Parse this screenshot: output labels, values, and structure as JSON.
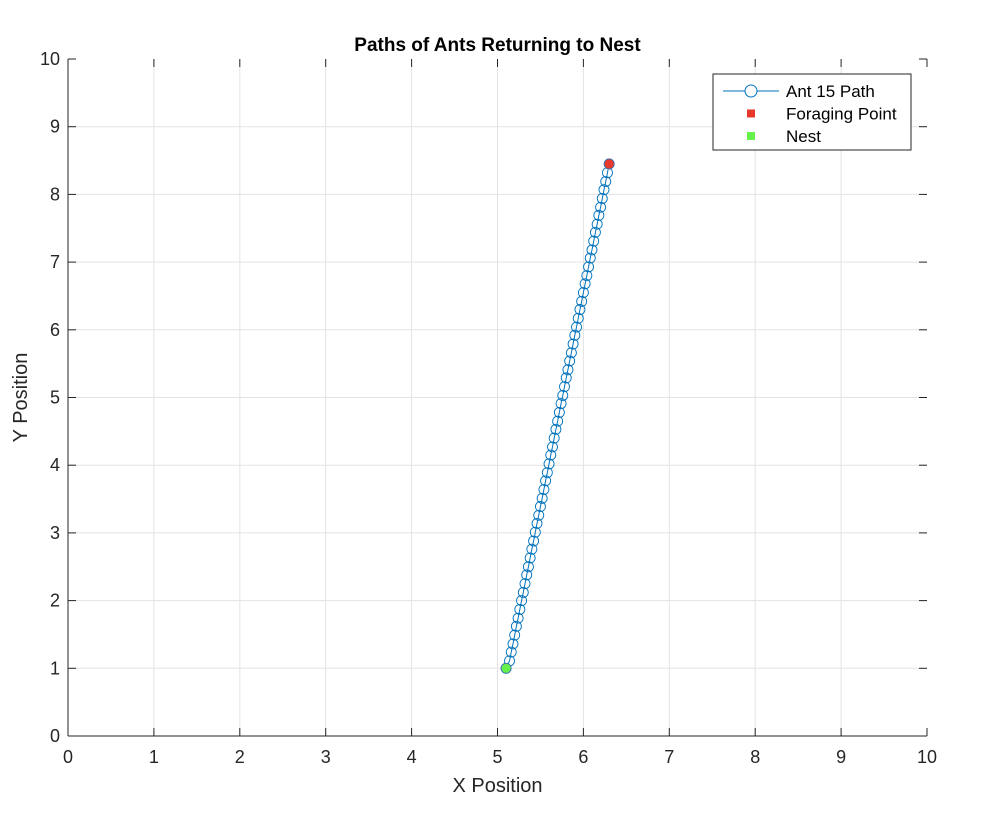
{
  "chart_data": {
    "type": "line",
    "title": "Paths of Ants Returning to Nest",
    "xlabel": "X Position",
    "ylabel": "Y Position",
    "xlim": [
      0,
      10
    ],
    "ylim": [
      0,
      10
    ],
    "xticks": [
      "0",
      "1",
      "2",
      "3",
      "4",
      "5",
      "6",
      "7",
      "8",
      "9",
      "10"
    ],
    "yticks": [
      "0",
      "1",
      "2",
      "3",
      "4",
      "5",
      "6",
      "7",
      "8",
      "9",
      "10"
    ],
    "grid": true,
    "legend_position": "top-right",
    "series": [
      {
        "name": "Ant 15 Path",
        "color": "#0072BD",
        "marker": "circle",
        "start": [
          6.3,
          8.45
        ],
        "end": [
          5.1,
          1.0
        ],
        "points": [
          [
            6.3,
            8.45
          ],
          [
            6.28,
            8.32
          ],
          [
            6.26,
            8.19
          ],
          [
            6.24,
            8.07
          ],
          [
            6.22,
            7.94
          ],
          [
            6.2,
            7.81
          ],
          [
            6.18,
            7.69
          ],
          [
            6.16,
            7.56
          ],
          [
            6.14,
            7.44
          ],
          [
            6.12,
            7.31
          ],
          [
            6.1,
            7.18
          ],
          [
            6.08,
            7.06
          ],
          [
            6.06,
            6.93
          ],
          [
            6.04,
            6.8
          ],
          [
            6.02,
            6.68
          ],
          [
            6.0,
            6.55
          ],
          [
            5.98,
            6.42
          ],
          [
            5.96,
            6.3
          ],
          [
            5.94,
            6.17
          ],
          [
            5.92,
            6.04
          ],
          [
            5.9,
            5.92
          ],
          [
            5.88,
            5.79
          ],
          [
            5.86,
            5.66
          ],
          [
            5.84,
            5.54
          ],
          [
            5.82,
            5.41
          ],
          [
            5.8,
            5.29
          ],
          [
            5.78,
            5.16
          ],
          [
            5.76,
            5.03
          ],
          [
            5.74,
            4.91
          ],
          [
            5.72,
            4.78
          ],
          [
            5.7,
            4.65
          ],
          [
            5.68,
            4.53
          ],
          [
            5.66,
            4.4
          ],
          [
            5.64,
            4.27
          ],
          [
            5.62,
            4.15
          ],
          [
            5.6,
            4.02
          ],
          [
            5.58,
            3.89
          ],
          [
            5.56,
            3.77
          ],
          [
            5.54,
            3.64
          ],
          [
            5.52,
            3.51
          ],
          [
            5.5,
            3.39
          ],
          [
            5.48,
            3.26
          ],
          [
            5.46,
            3.14
          ],
          [
            5.44,
            3.01
          ],
          [
            5.42,
            2.88
          ],
          [
            5.4,
            2.76
          ],
          [
            5.38,
            2.63
          ],
          [
            5.36,
            2.5
          ],
          [
            5.34,
            2.38
          ],
          [
            5.32,
            2.25
          ],
          [
            5.3,
            2.12
          ],
          [
            5.28,
            2.0
          ],
          [
            5.26,
            1.87
          ],
          [
            5.24,
            1.74
          ],
          [
            5.22,
            1.62
          ],
          [
            5.2,
            1.49
          ],
          [
            5.18,
            1.36
          ],
          [
            5.16,
            1.24
          ],
          [
            5.14,
            1.11
          ],
          [
            5.1,
            1.0
          ]
        ]
      }
    ],
    "markers": [
      {
        "name": "Foraging Point",
        "x": 6.3,
        "y": 8.45,
        "color": "#E8372B"
      },
      {
        "name": "Nest",
        "x": 5.1,
        "y": 1.0,
        "color": "#66F24B"
      }
    ]
  }
}
